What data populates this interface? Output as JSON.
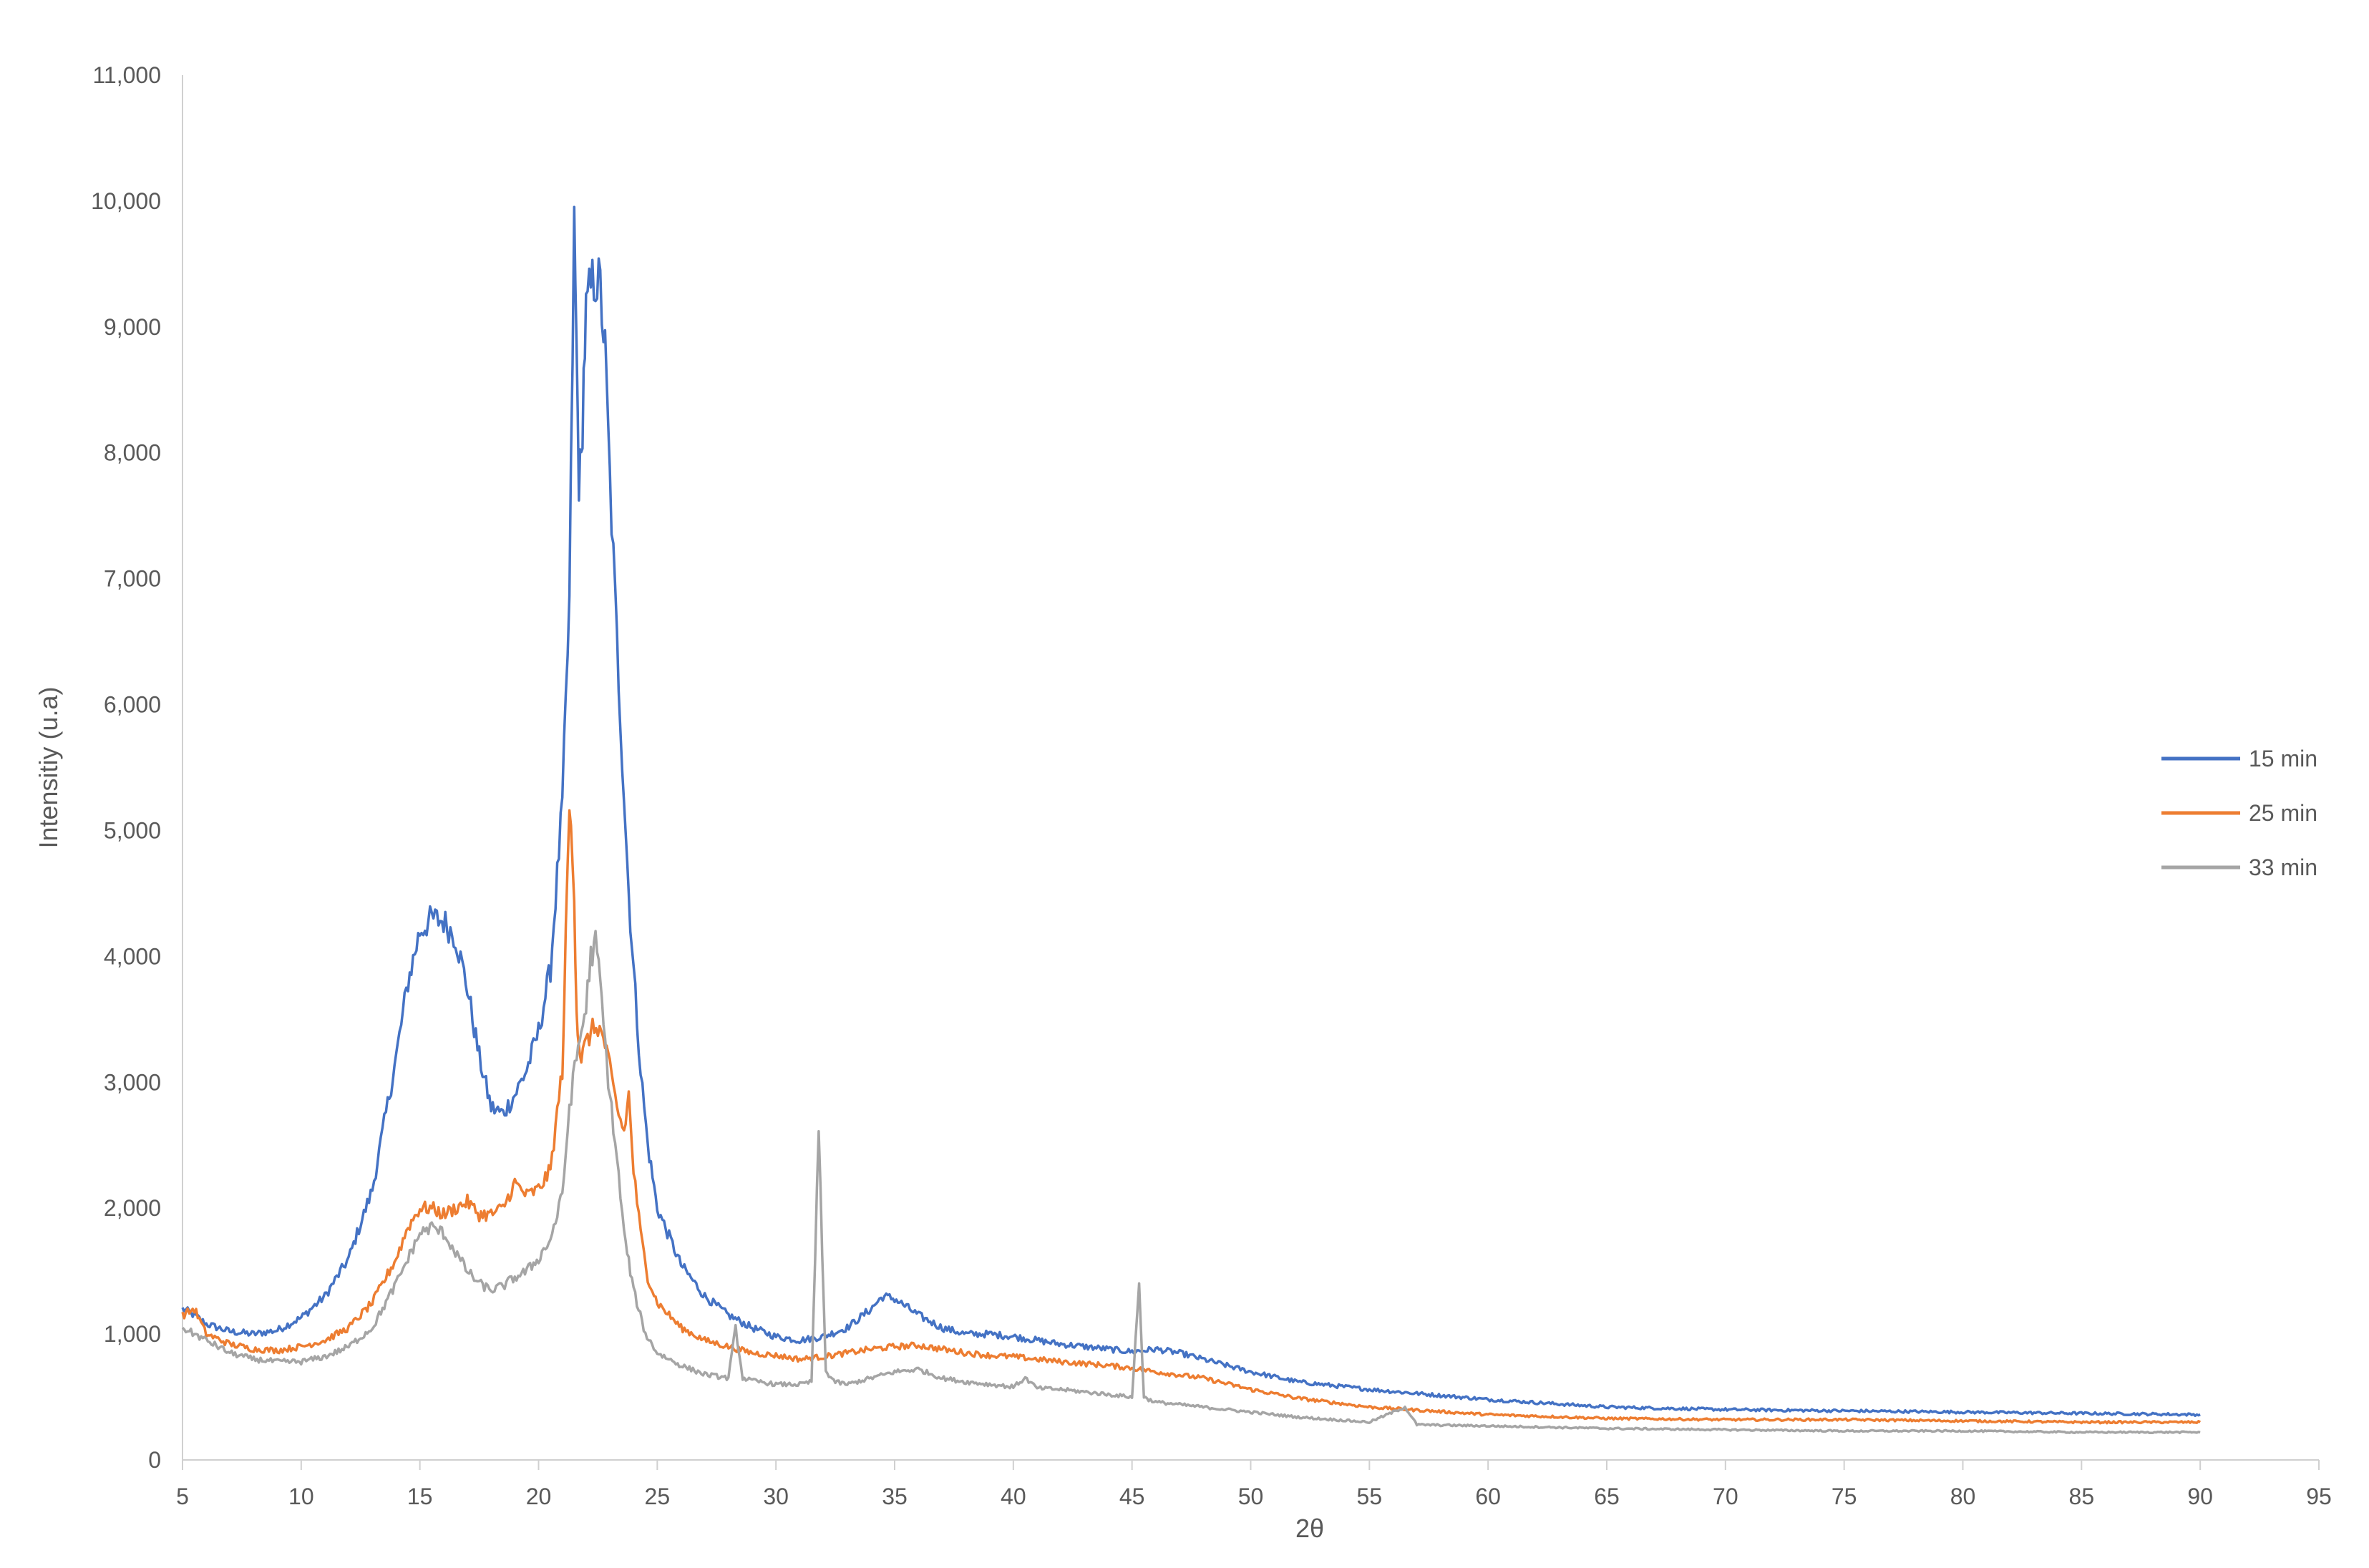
{
  "chart_data": {
    "type": "line",
    "title": "",
    "xlabel": "2θ",
    "ylabel": "Intensitiy (u.a)",
    "xlim": [
      5,
      95
    ],
    "ylim": [
      0,
      11000
    ],
    "x_ticks": [
      "5",
      "10",
      "15",
      "20",
      "25",
      "30",
      "35",
      "40",
      "45",
      "50",
      "55",
      "60",
      "65",
      "70",
      "75",
      "80",
      "85",
      "90",
      "95"
    ],
    "y_ticks": [
      "0",
      "1,000",
      "2,000",
      "3,000",
      "4,000",
      "5,000",
      "6,000",
      "7,000",
      "8,000",
      "9,000",
      "10,000",
      "11,000"
    ],
    "grid": false,
    "legend_position": "right",
    "colors": [
      "#4472C4",
      "#ED7D31",
      "#A5A5A5"
    ],
    "series": [
      {
        "name": "15 min",
        "x": [
          5,
          5.5,
          6,
          7,
          8,
          9,
          10,
          11,
          12,
          13,
          14,
          14.5,
          15,
          15.5,
          16,
          16.5,
          17,
          17.5,
          18,
          18.5,
          19,
          19.5,
          20,
          20.5,
          21,
          21.3,
          21.5,
          21.6,
          21.7,
          21.8,
          21.9,
          22,
          22.2,
          22.4,
          22.6,
          22.8,
          23,
          23.3,
          23.6,
          23.8,
          24,
          24.3,
          24.6,
          25,
          26,
          27,
          28,
          29,
          30,
          31,
          32,
          33,
          34,
          34.5,
          35,
          36,
          37,
          38,
          39,
          40,
          41,
          42,
          43,
          44,
          45,
          46,
          47,
          48,
          50,
          52,
          55,
          60,
          65,
          70,
          75,
          80,
          85,
          90
        ],
        "y": [
          1200,
          1150,
          1080,
          1020,
          1000,
          1030,
          1130,
          1300,
          1600,
          2150,
          3200,
          3800,
          4200,
          4300,
          4280,
          4150,
          3750,
          3200,
          2800,
          2750,
          2900,
          3100,
          3400,
          3900,
          5200,
          6800,
          9800,
          8800,
          7800,
          7900,
          8600,
          9100,
          9300,
          9400,
          9300,
          8800,
          7800,
          6500,
          5300,
          4500,
          3900,
          3100,
          2500,
          2000,
          1550,
          1300,
          1150,
          1050,
          980,
          950,
          980,
          1050,
          1200,
          1300,
          1280,
          1150,
          1050,
          1000,
          1000,
          980,
          950,
          920,
          900,
          880,
          860,
          880,
          850,
          800,
          700,
          620,
          560,
          480,
          420,
          400,
          390,
          380,
          370,
          360
        ]
      },
      {
        "name": "25 min",
        "x": [
          5,
          5.5,
          6,
          7,
          8,
          9,
          10,
          11,
          12,
          13,
          14,
          14.5,
          15,
          15.5,
          16,
          16.5,
          17,
          17.5,
          18,
          18.5,
          19,
          19.5,
          20,
          20.5,
          21,
          21.3,
          21.5,
          21.6,
          21.7,
          21.8,
          22,
          22.2,
          22.5,
          22.8,
          23,
          23.3,
          23.6,
          23.8,
          24,
          24.3,
          24.6,
          25,
          26,
          27,
          28,
          29,
          30,
          31,
          32,
          33,
          34,
          35,
          36,
          37,
          38,
          39,
          40,
          42,
          44,
          45,
          46,
          48,
          50,
          52,
          55,
          60,
          65,
          70,
          75,
          80,
          85,
          90
        ],
        "y": [
          1150,
          1200,
          1000,
          920,
          880,
          870,
          900,
          950,
          1050,
          1250,
          1600,
          1850,
          2000,
          2000,
          1950,
          2000,
          2050,
          1950,
          1950,
          2000,
          2200,
          2100,
          2150,
          2300,
          3100,
          5200,
          4500,
          3600,
          3300,
          3200,
          3300,
          3400,
          3450,
          3300,
          3100,
          2800,
          2600,
          2900,
          2300,
          1800,
          1450,
          1250,
          1050,
          950,
          900,
          850,
          830,
          800,
          820,
          850,
          880,
          900,
          910,
          880,
          850,
          830,
          820,
          780,
          750,
          730,
          700,
          650,
          560,
          490,
          420,
          360,
          330,
          320,
          320,
          310,
          300,
          300
        ]
      },
      {
        "name": "33 min",
        "x": [
          5,
          5.5,
          6,
          7,
          8,
          9,
          10,
          11,
          12,
          13,
          14,
          14.5,
          15,
          15.5,
          16,
          16.5,
          17,
          17.5,
          18,
          18.5,
          19,
          19.5,
          20,
          20.5,
          21,
          21.3,
          21.6,
          22,
          22.2,
          22.4,
          22.6,
          22.8,
          23,
          23.3,
          23.6,
          24,
          24.5,
          25,
          26,
          27,
          28,
          28.3,
          28.6,
          29,
          30,
          31,
          31.5,
          31.8,
          32.1,
          32.5,
          33,
          34,
          35,
          36,
          37,
          38,
          39,
          40,
          40.5,
          41,
          42,
          43,
          44,
          45,
          45.3,
          45.5,
          45.7,
          46,
          47,
          48,
          50,
          52,
          55,
          56.5,
          57,
          60,
          65,
          70,
          75,
          80,
          85,
          90
        ],
        "y": [
          1050,
          1000,
          950,
          850,
          800,
          780,
          780,
          820,
          900,
          1050,
          1400,
          1600,
          1800,
          1850,
          1800,
          1650,
          1500,
          1400,
          1350,
          1380,
          1450,
          1500,
          1600,
          1750,
          2100,
          2800,
          3200,
          3600,
          4000,
          4100,
          3800,
          3300,
          2900,
          2400,
          1800,
          1350,
          1000,
          850,
          750,
          680,
          650,
          1050,
          650,
          630,
          600,
          600,
          620,
          2600,
          700,
          620,
          600,
          650,
          700,
          720,
          650,
          620,
          600,
          580,
          650,
          570,
          560,
          540,
          520,
          500,
          1400,
          500,
          480,
          460,
          440,
          420,
          380,
          340,
          300,
          420,
          280,
          270,
          250,
          240,
          230,
          230,
          220,
          220
        ]
      }
    ]
  }
}
